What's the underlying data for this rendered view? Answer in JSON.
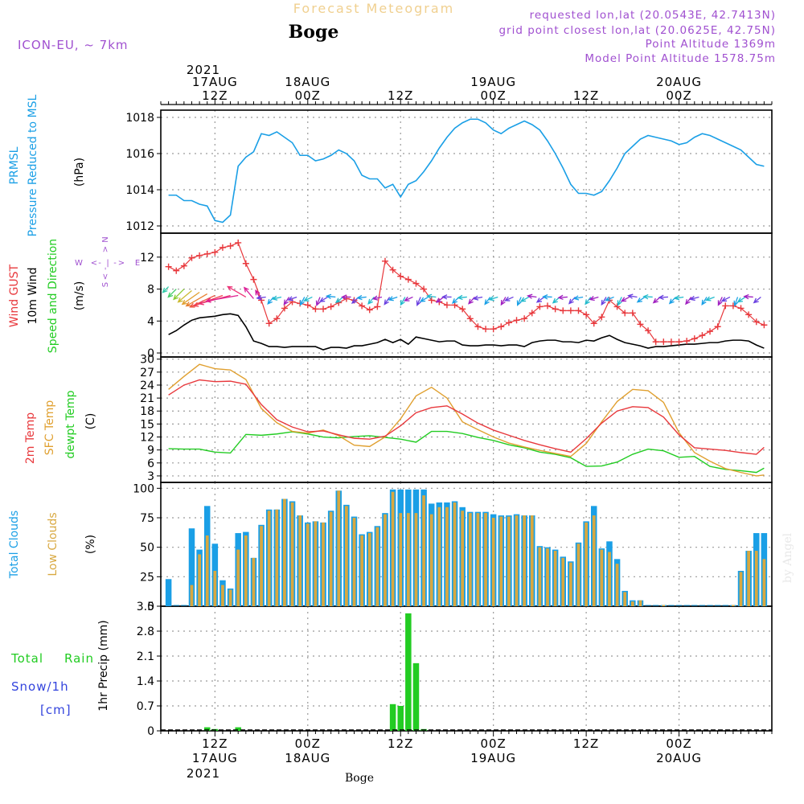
{
  "header": {
    "title": "Forecast Meteogram",
    "location": "Boge",
    "model": "ICON-EU, ~ 7km",
    "requested": "requested lon,lat (20.0543E, 42.7413N)",
    "grid_point": "grid point closest lon,lat (20.0625E, 42.75N)",
    "point_altitude": "Point Altitude 1369m",
    "model_altitude": "Model Point Altitude 1578.75m"
  },
  "time_axis": {
    "top_year": "2021",
    "bottom_year": "2021",
    "ticks": [
      {
        "t": 12,
        "top": [
          "17AUG",
          "12Z"
        ],
        "bottom": [
          "12Z",
          "17AUG"
        ]
      },
      {
        "t": 24,
        "top": [
          "18AUG",
          "00Z"
        ],
        "bottom": [
          "00Z",
          "18AUG"
        ]
      },
      {
        "t": 36,
        "top": [
          "12Z"
        ],
        "bottom": [
          "12Z"
        ]
      },
      {
        "t": 48,
        "top": [
          "19AUG",
          "00Z"
        ],
        "bottom": [
          "00Z",
          "19AUG"
        ]
      },
      {
        "t": 60,
        "top": [
          "12Z"
        ],
        "bottom": [
          "12Z"
        ]
      },
      {
        "t": 72,
        "top": [
          "20AUG",
          "00Z"
        ],
        "bottom": [
          "00Z",
          "20AUG"
        ]
      }
    ],
    "footer_label": "Boge",
    "watermark": "by Angel"
  },
  "colors": {
    "pressure": "#1a9fe6",
    "gust": "#e8383c",
    "wind": "#000000",
    "temp": "#e8383c",
    "sfc": "#e0a030",
    "dewpt": "#22cc22",
    "total_clouds": "#1a9fe6",
    "low_clouds": "#d8a840",
    "rain": "#22cc22",
    "snow": "#3344dd",
    "purple": "#a050d0",
    "title": "#f0d090"
  },
  "chart_data": [
    {
      "type": "line",
      "name": "pressure",
      "labels": [
        "PRMSL",
        "Pressure Reduced to MSL",
        "(hPa)"
      ],
      "ylim": [
        1011.6,
        1018.4
      ],
      "yticks": [
        1012,
        1014,
        1016,
        1018
      ],
      "x": [
        6,
        7,
        8,
        9,
        10,
        11,
        12,
        13,
        14,
        15,
        16,
        17,
        18,
        19,
        20,
        21,
        22,
        23,
        24,
        25,
        26,
        27,
        28,
        29,
        30,
        31,
        32,
        33,
        34,
        35,
        36,
        37,
        38,
        39,
        40,
        41,
        42,
        43,
        44,
        45,
        46,
        47,
        48,
        49,
        50,
        51,
        52,
        53,
        54,
        55,
        56,
        57,
        58,
        59,
        60,
        61,
        62,
        63,
        64,
        65,
        66,
        67,
        68,
        69,
        70,
        71,
        72,
        73,
        74,
        75,
        76,
        77,
        78,
        79,
        80,
        81,
        82,
        83
      ],
      "values": [
        1013.7,
        1013.7,
        1013.4,
        1013.4,
        1013.2,
        1013.1,
        1012.3,
        1012.2,
        1012.6,
        1015.3,
        1015.8,
        1016.1,
        1017.1,
        1017.0,
        1017.2,
        1016.9,
        1016.6,
        1015.9,
        1015.9,
        1015.6,
        1015.7,
        1015.9,
        1016.2,
        1016.0,
        1015.6,
        1014.8,
        1014.6,
        1014.6,
        1014.1,
        1014.3,
        1013.6,
        1014.3,
        1014.5,
        1015.0,
        1015.6,
        1016.3,
        1016.9,
        1017.4,
        1017.7,
        1017.9,
        1017.9,
        1017.7,
        1017.3,
        1017.1,
        1017.4,
        1017.6,
        1017.8,
        1017.6,
        1017.3,
        1016.7,
        1016.0,
        1015.2,
        1014.3,
        1013.8,
        1013.8,
        1013.7,
        1013.9,
        1014.5,
        1015.2,
        1016.0,
        1016.4,
        1016.8,
        1017.0,
        1016.9,
        1016.8,
        1016.7,
        1016.5,
        1016.6,
        1016.9,
        1017.1,
        1017.0,
        1016.8,
        1016.6,
        1016.4,
        1016.2,
        1015.8,
        1015.4,
        1015.3
      ]
    },
    {
      "type": "line",
      "name": "wind",
      "labels": [
        "Wind GUST",
        "10m Wind",
        "Speed and Direction",
        "(m/s)"
      ],
      "compass": [
        "N",
        "S",
        "W",
        "E",
        "<",
        "-",
        "|",
        ">"
      ],
      "ylim": [
        -0.5,
        15
      ],
      "yticks": [
        0,
        4,
        8,
        12
      ],
      "x": [
        6,
        7,
        8,
        9,
        10,
        11,
        12,
        13,
        14,
        15,
        16,
        17,
        18,
        19,
        20,
        21,
        22,
        23,
        24,
        25,
        26,
        27,
        28,
        29,
        30,
        31,
        32,
        33,
        34,
        35,
        36,
        37,
        38,
        39,
        40,
        41,
        42,
        43,
        44,
        45,
        46,
        47,
        48,
        49,
        50,
        51,
        52,
        53,
        54,
        55,
        56,
        57,
        58,
        59,
        60,
        61,
        62,
        63,
        64,
        65,
        66,
        67,
        68,
        69,
        70,
        71,
        72,
        73,
        74,
        75,
        76,
        77,
        78,
        79,
        80,
        81,
        82,
        83
      ],
      "gust": [
        10.8,
        10.3,
        10.9,
        11.9,
        12.2,
        12.4,
        12.6,
        13.2,
        13.4,
        13.8,
        11.2,
        9.2,
        6.6,
        3.7,
        4.3,
        5.6,
        6.4,
        6.2,
        6.0,
        5.5,
        5.5,
        5.8,
        6.3,
        6.8,
        6.6,
        5.9,
        5.4,
        5.8,
        11.5,
        10.4,
        9.6,
        9.2,
        8.7,
        8.0,
        6.6,
        6.4,
        6.0,
        6.0,
        5.5,
        4.3,
        3.3,
        3.0,
        3.0,
        3.3,
        3.8,
        4.1,
        4.3,
        5.0,
        5.8,
        5.9,
        5.5,
        5.3,
        5.3,
        5.3,
        4.8,
        3.7,
        4.5,
        6.6,
        5.8,
        5.0,
        5.0,
        3.6,
        2.8,
        1.4,
        1.4,
        1.4,
        1.4,
        1.5,
        1.8,
        2.2,
        2.7,
        3.3,
        5.9,
        5.9,
        5.6,
        4.8,
        3.9,
        3.5
      ],
      "speed": [
        2.3,
        2.8,
        3.5,
        4.1,
        4.4,
        4.5,
        4.6,
        4.8,
        4.9,
        4.7,
        3.3,
        1.5,
        1.2,
        0.8,
        0.8,
        0.7,
        0.8,
        0.8,
        0.8,
        0.8,
        0.4,
        0.7,
        0.7,
        0.6,
        0.9,
        0.9,
        1.1,
        1.3,
        1.7,
        1.3,
        1.7,
        1.1,
        2.0,
        1.8,
        1.6,
        1.4,
        1.5,
        1.5,
        1.0,
        0.9,
        0.9,
        1.0,
        1.0,
        0.9,
        1.0,
        1.0,
        0.8,
        1.3,
        1.5,
        1.6,
        1.6,
        1.4,
        1.4,
        1.3,
        1.6,
        1.5,
        1.9,
        2.2,
        1.7,
        1.3,
        1.1,
        0.9,
        0.6,
        0.8,
        0.8,
        0.9,
        1.0,
        1.1,
        1.1,
        1.2,
        1.3,
        1.3,
        1.5,
        1.6,
        1.6,
        1.5,
        1.0,
        0.6
      ],
      "arrows": [
        {
          "x": 6,
          "y": 8.3,
          "dir": 225,
          "len": 10,
          "color": "#33ccaa"
        },
        {
          "x": 7,
          "y": 8.0,
          "dir": 225,
          "len": 14,
          "color": "#44cc66"
        },
        {
          "x": 8,
          "y": 8.0,
          "dir": 225,
          "len": 18,
          "color": "#88cc33"
        },
        {
          "x": 9,
          "y": 7.8,
          "dir": 230,
          "len": 22,
          "color": "#ccbb33"
        },
        {
          "x": 10,
          "y": 7.6,
          "dir": 235,
          "len": 26,
          "color": "#e0a030"
        },
        {
          "x": 11,
          "y": 7.4,
          "dir": 240,
          "len": 30,
          "color": "#e88030"
        },
        {
          "x": 12,
          "y": 7.2,
          "dir": 245,
          "len": 34,
          "color": "#ee5540"
        },
        {
          "x": 13,
          "y": 7.2,
          "dir": 250,
          "len": 38,
          "color": "#f04050"
        },
        {
          "x": 14,
          "y": 7.2,
          "dir": 255,
          "len": 40,
          "color": "#e83070"
        },
        {
          "x": 15,
          "y": 7.2,
          "dir": 260,
          "len": 40,
          "color": "#e02090"
        },
        {
          "x": 16,
          "y": 7.0,
          "dir": 300,
          "len": 26,
          "color": "#ee3377"
        },
        {
          "x": 17,
          "y": 6.8,
          "dir": 320,
          "len": 18,
          "color": "#dd2299"
        },
        {
          "x": 18,
          "y": 6.6,
          "dir": 330,
          "len": 14,
          "color": "#cc1199"
        }
      ],
      "arrow_band": {
        "from": 16,
        "to": 83,
        "y": 6.6,
        "colors": [
          "#1aa0e6",
          "#6a40e0",
          "#a020c0",
          "#22bbcc"
        ]
      }
    },
    {
      "type": "line",
      "name": "temperature",
      "labels": [
        "2m Temp",
        "SFC Temp",
        "dewpt Temp",
        "(C)"
      ],
      "ylim": [
        1.5,
        30.5
      ],
      "yticks": [
        3,
        6,
        9,
        12,
        15,
        18,
        21,
        24,
        27,
        30
      ],
      "x": [
        6,
        8,
        10,
        12,
        14,
        16,
        18,
        20,
        22,
        24,
        26,
        28,
        30,
        32,
        34,
        36,
        38,
        40,
        42,
        44,
        46,
        48,
        50,
        52,
        54,
        56,
        58,
        60,
        62,
        64,
        66,
        68,
        70,
        72,
        74,
        76,
        78,
        80,
        82,
        83
      ],
      "temp2m": [
        21.7,
        24.0,
        25.2,
        24.8,
        24.9,
        24.2,
        19.5,
        16.0,
        14.3,
        13.2,
        13.4,
        12.5,
        11.7,
        11.5,
        12.2,
        14.6,
        17.6,
        18.8,
        19.2,
        17.3,
        15.2,
        13.6,
        12.4,
        11.2,
        10.2,
        9.3,
        8.5,
        11.6,
        15.2,
        18.0,
        19.0,
        18.8,
        16.6,
        12.5,
        9.5,
        9.2,
        8.9,
        8.4,
        8.0,
        9.6
      ],
      "sfctemp": [
        23.0,
        26.0,
        28.8,
        27.8,
        27.5,
        25.3,
        18.6,
        15.3,
        13.3,
        12.9,
        13.6,
        12.3,
        10.1,
        9.8,
        12.0,
        16.2,
        21.5,
        23.5,
        21.0,
        15.5,
        13.7,
        12.0,
        10.6,
        9.7,
        8.9,
        8.2,
        7.5,
        10.5,
        15.5,
        20.2,
        23.0,
        22.7,
        20.0,
        13.0,
        8.4,
        6.4,
        4.7,
        3.8,
        3.0,
        3.2
      ],
      "dewpt": [
        9.3,
        9.2,
        9.2,
        8.5,
        8.3,
        12.6,
        12.4,
        12.7,
        13.2,
        12.7,
        12.0,
        11.8,
        12.1,
        12.3,
        11.9,
        11.5,
        10.8,
        13.3,
        13.3,
        12.8,
        11.9,
        11.2,
        10.2,
        9.5,
        8.5,
        8.0,
        7.2,
        5.2,
        5.3,
        6.2,
        8.0,
        9.2,
        8.8,
        7.3,
        7.5,
        5.2,
        4.5,
        4.2,
        3.8,
        4.8
      ]
    },
    {
      "type": "bar",
      "name": "clouds",
      "labels": [
        "Total Clouds",
        "Low Clouds",
        "(%)"
      ],
      "ylim": [
        0,
        105
      ],
      "yticks": [
        0,
        25,
        50,
        75,
        100
      ],
      "x": [
        6,
        7,
        8,
        9,
        10,
        11,
        12,
        13,
        14,
        15,
        16,
        17,
        18,
        19,
        20,
        21,
        22,
        23,
        24,
        25,
        26,
        27,
        28,
        29,
        30,
        31,
        32,
        33,
        34,
        35,
        36,
        37,
        38,
        39,
        40,
        41,
        42,
        43,
        44,
        45,
        46,
        47,
        48,
        49,
        50,
        51,
        52,
        53,
        54,
        55,
        56,
        57,
        58,
        59,
        60,
        61,
        62,
        63,
        64,
        65,
        66,
        67,
        68,
        69,
        70,
        71,
        72,
        73,
        74,
        75,
        76,
        77,
        78,
        79,
        80,
        81,
        82,
        83
      ],
      "total": [
        23,
        0,
        0,
        66,
        48,
        85,
        53,
        22,
        15,
        62,
        63,
        41,
        69,
        82,
        82,
        91,
        89,
        77,
        71,
        72,
        71,
        81,
        98,
        86,
        76,
        61,
        63,
        68,
        79,
        99,
        99,
        99,
        99,
        99,
        87,
        88,
        88,
        89,
        84,
        80,
        80,
        80,
        78,
        77,
        77,
        78,
        77,
        77,
        51,
        50,
        48,
        42,
        38,
        54,
        72,
        85,
        49,
        55,
        40,
        13,
        5,
        5,
        0,
        0,
        1,
        0,
        0,
        0,
        0,
        0,
        0,
        0,
        0,
        1,
        30,
        47,
        62,
        62
      ],
      "low": [
        0,
        0,
        0,
        18,
        44,
        60,
        30,
        18,
        14,
        48,
        60,
        41,
        68,
        81,
        82,
        91,
        88,
        77,
        70,
        72,
        71,
        80,
        98,
        85,
        75,
        60,
        62,
        67,
        78,
        97,
        79,
        79,
        79,
        94,
        78,
        84,
        84,
        88,
        81,
        79,
        79,
        79,
        75,
        76,
        76,
        77,
        77,
        77,
        50,
        49,
        47,
        41,
        37,
        53,
        71,
        77,
        48,
        46,
        36,
        12,
        4,
        5,
        0,
        0,
        1,
        0,
        0,
        0,
        0,
        0,
        0,
        0,
        0,
        1,
        29,
        47,
        47,
        40
      ]
    },
    {
      "type": "bar",
      "name": "precipitation",
      "labels": [
        "Total",
        "Rain",
        "Snow/1h",
        "[cm]",
        "1hr Precip (mm)"
      ],
      "ylim": [
        0,
        3.5
      ],
      "yticks": [
        "0",
        "0.7",
        "1.4",
        "2.1",
        "2.8",
        "3.5"
      ],
      "x": [
        11,
        12,
        15,
        35,
        36,
        37,
        38,
        39
      ],
      "values": [
        0.1,
        0.05,
        0.1,
        0.75,
        0.7,
        3.3,
        1.9,
        0.05
      ]
    }
  ]
}
